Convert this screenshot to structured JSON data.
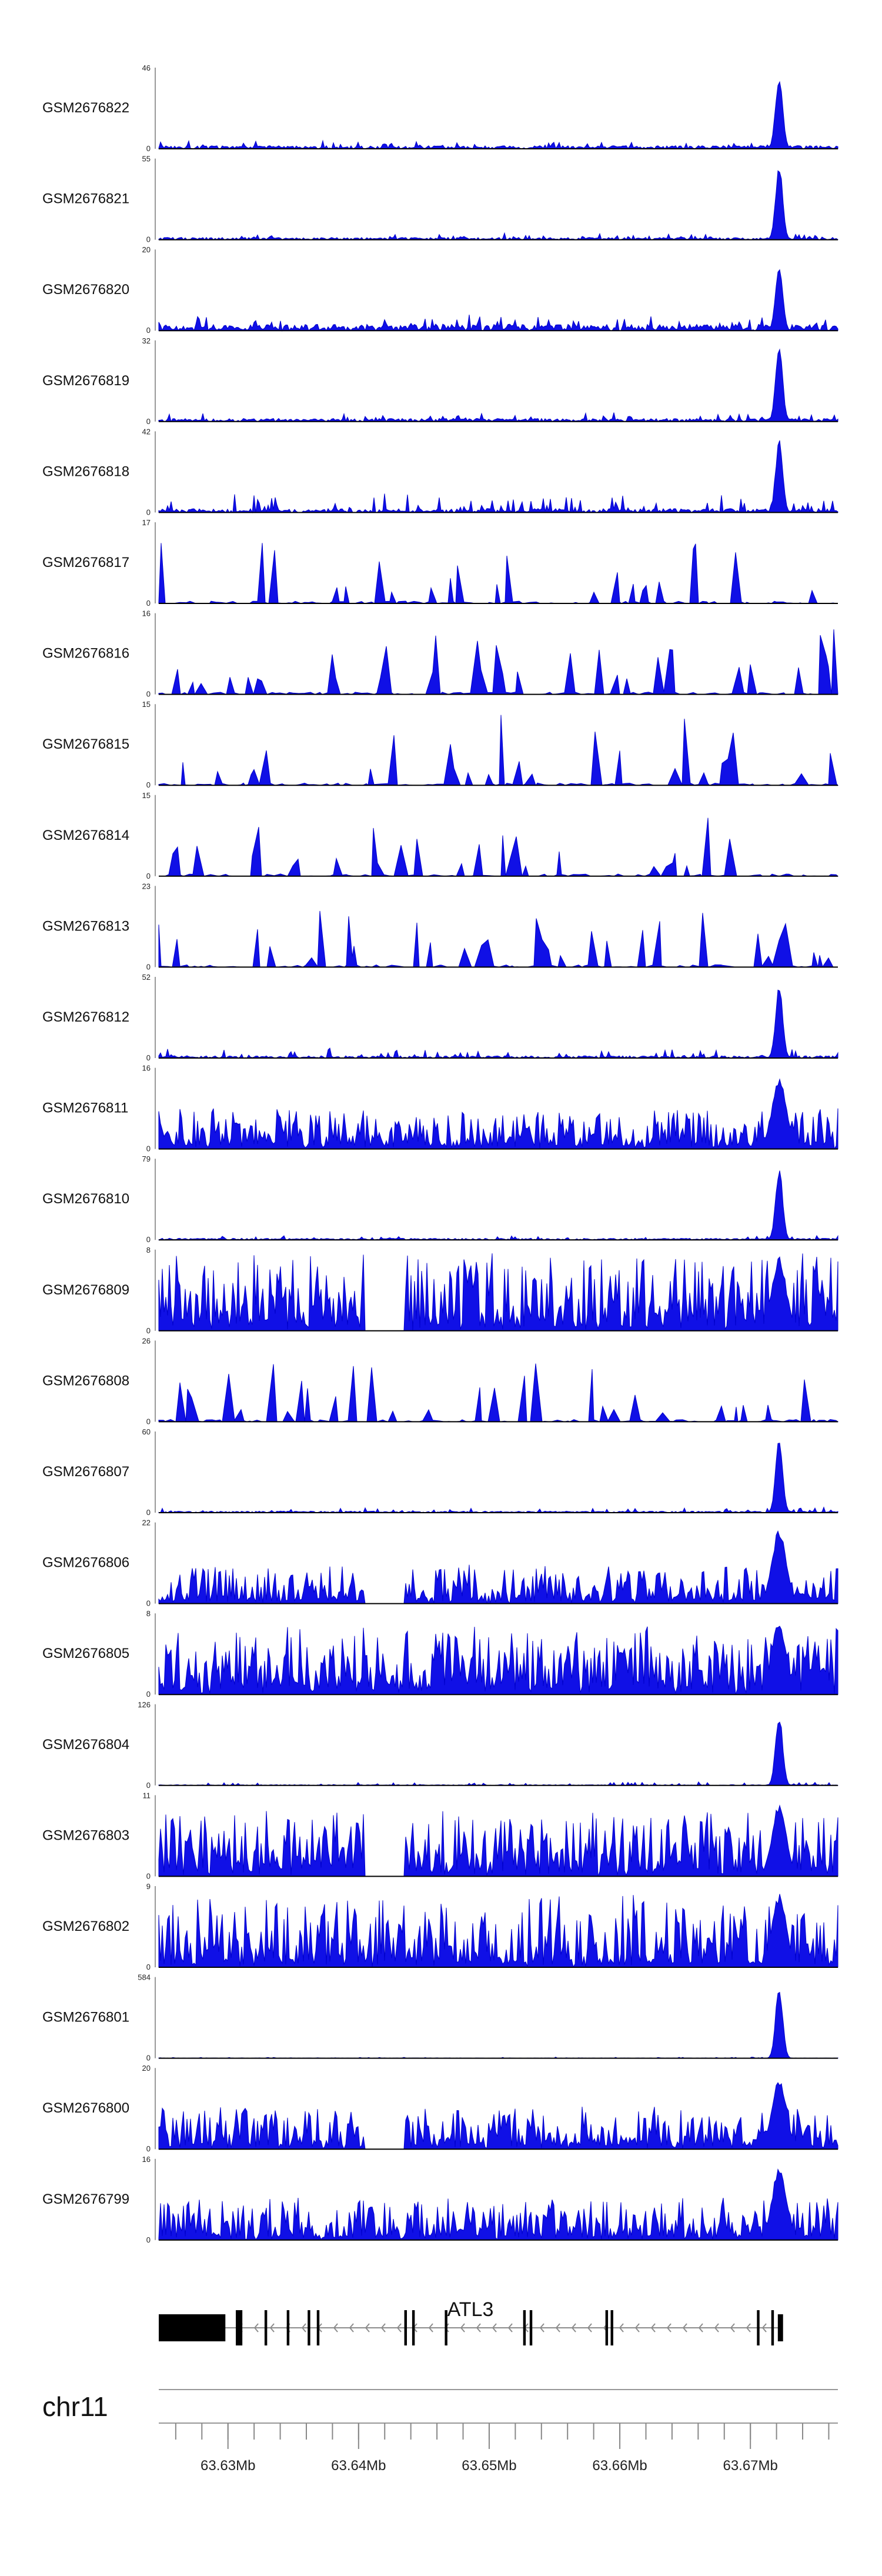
{
  "chart_data": {
    "type": "area",
    "x_range": [
      63.6247,
      63.6767
    ],
    "tracks": [
      {
        "name": "GSM2676822",
        "ymax": "46",
        "ymin": "0",
        "profile": "peak",
        "baseline": 0.04,
        "noise": 0.07,
        "peak": 1.0,
        "seed": 11
      },
      {
        "name": "GSM2676821",
        "ymax": "55",
        "ymin": "0",
        "profile": "peak",
        "baseline": 0.03,
        "noise": 0.06,
        "peak": 1.0,
        "seed": 12
      },
      {
        "name": "GSM2676820",
        "ymax": "20",
        "ymin": "0",
        "profile": "peak",
        "baseline": 0.08,
        "noise": 0.14,
        "peak": 0.9,
        "seed": 13
      },
      {
        "name": "GSM2676819",
        "ymax": "32",
        "ymin": "0",
        "profile": "peak",
        "baseline": 0.04,
        "noise": 0.08,
        "peak": 0.95,
        "seed": 14
      },
      {
        "name": "GSM2676818",
        "ymax": "42",
        "ymin": "0",
        "profile": "peak",
        "baseline": 0.05,
        "noise": 0.2,
        "peak": 0.95,
        "seed": 15
      },
      {
        "name": "GSM2676817",
        "ymax": "17",
        "ymin": "0",
        "profile": "sparse",
        "baseline": 0.0,
        "noise": 0.85,
        "peak": 0.0,
        "seed": 16
      },
      {
        "name": "GSM2676816",
        "ymax": "16",
        "ymin": "0",
        "profile": "sparse",
        "baseline": 0.0,
        "noise": 0.85,
        "peak": 0.0,
        "seed": 17
      },
      {
        "name": "GSM2676815",
        "ymax": "15",
        "ymin": "0",
        "profile": "sparse",
        "baseline": 0.0,
        "noise": 0.9,
        "peak": 0.0,
        "seed": 18
      },
      {
        "name": "GSM2676814",
        "ymax": "15",
        "ymin": "0",
        "profile": "sparse",
        "baseline": 0.0,
        "noise": 0.8,
        "peak": 0.0,
        "seed": 19
      },
      {
        "name": "GSM2676813",
        "ymax": "23",
        "ymin": "0",
        "profile": "sparse",
        "baseline": 0.0,
        "noise": 0.75,
        "peak": 0.0,
        "seed": 20
      },
      {
        "name": "GSM2676812",
        "ymax": "52",
        "ymin": "0",
        "profile": "peak",
        "baseline": 0.03,
        "noise": 0.1,
        "peak": 0.95,
        "seed": 21
      },
      {
        "name": "GSM2676811",
        "ymax": "16",
        "ymin": "0",
        "profile": "dense",
        "baseline": 0.05,
        "noise": 0.5,
        "peak": 0.95,
        "seed": 22
      },
      {
        "name": "GSM2676810",
        "ymax": "79",
        "ymin": "0",
        "profile": "peak",
        "baseline": 0.02,
        "noise": 0.04,
        "peak": 0.95,
        "seed": 23
      },
      {
        "name": "GSM2676809",
        "ymax": "8",
        "ymin": "0",
        "profile": "dense",
        "baseline": 0.1,
        "noise": 0.9,
        "peak": 0.95,
        "seed": 24
      },
      {
        "name": "GSM2676808",
        "ymax": "26",
        "ymin": "0",
        "profile": "sparse",
        "baseline": 0.0,
        "noise": 0.75,
        "peak": 0.0,
        "seed": 25
      },
      {
        "name": "GSM2676807",
        "ymax": "60",
        "ymin": "0",
        "profile": "peak",
        "baseline": 0.02,
        "noise": 0.05,
        "peak": 0.95,
        "seed": 26
      },
      {
        "name": "GSM2676806",
        "ymax": "22",
        "ymin": "0",
        "profile": "dense",
        "baseline": 0.05,
        "noise": 0.45,
        "peak": 0.95,
        "seed": 27
      },
      {
        "name": "GSM2676805",
        "ymax": "8",
        "ymin": "0",
        "profile": "dense",
        "baseline": 0.1,
        "noise": 0.8,
        "peak": 0.95,
        "seed": 28
      },
      {
        "name": "GSM2676804",
        "ymax": "126",
        "ymin": "0",
        "profile": "peak",
        "baseline": 0.01,
        "noise": 0.04,
        "peak": 0.95,
        "seed": 29
      },
      {
        "name": "GSM2676803",
        "ymax": "11",
        "ymin": "0",
        "profile": "dense",
        "baseline": 0.1,
        "noise": 0.75,
        "peak": 0.95,
        "seed": 30
      },
      {
        "name": "GSM2676802",
        "ymax": "9",
        "ymin": "0",
        "profile": "dense",
        "baseline": 0.08,
        "noise": 0.85,
        "peak": 0.95,
        "seed": 31
      },
      {
        "name": "GSM2676801",
        "ymax": "584",
        "ymin": "0",
        "profile": "peak",
        "baseline": 0.005,
        "noise": 0.01,
        "peak": 0.95,
        "seed": 32
      },
      {
        "name": "GSM2676800",
        "ymax": "20",
        "ymin": "0",
        "profile": "dense",
        "baseline": 0.05,
        "noise": 0.5,
        "peak": 0.95,
        "seed": 33
      },
      {
        "name": "GSM2676799",
        "ymax": "16",
        "ymin": "0",
        "profile": "dense",
        "baseline": 0.05,
        "noise": 0.5,
        "peak": 0.95,
        "seed": 34
      }
    ],
    "peak_center": 63.6722,
    "gene": {
      "name": "ATL3",
      "strand": "-",
      "intron_start": 63.6297,
      "intron_end": 63.6723,
      "exons": [
        {
          "start": 63.6247,
          "end": 63.6298
        },
        {
          "start": 63.6306,
          "end": 63.6311
        },
        {
          "start": 63.6328,
          "end": 63.633
        },
        {
          "start": 63.6345,
          "end": 63.6347
        },
        {
          "start": 63.6361,
          "end": 63.6363
        },
        {
          "start": 63.6368,
          "end": 63.637
        },
        {
          "start": 63.6435,
          "end": 63.6437
        },
        {
          "start": 63.6441,
          "end": 63.6443
        },
        {
          "start": 63.6466,
          "end": 63.6468
        },
        {
          "start": 63.6526,
          "end": 63.6528
        },
        {
          "start": 63.6531,
          "end": 63.6533
        },
        {
          "start": 63.6589,
          "end": 63.6591
        },
        {
          "start": 63.6593,
          "end": 63.6595
        },
        {
          "start": 63.6705,
          "end": 63.6707
        },
        {
          "start": 63.6716,
          "end": 63.6718
        },
        {
          "start": 63.6721,
          "end": 63.6725
        }
      ]
    },
    "chromosome": "chr11",
    "xticks": [
      {
        "value": 63.63,
        "label": "63.63Mb"
      },
      {
        "value": 63.64,
        "label": "63.64Mb"
      },
      {
        "value": 63.65,
        "label": "63.65Mb"
      },
      {
        "value": 63.66,
        "label": "63.66Mb"
      },
      {
        "value": 63.67,
        "label": "63.67Mb"
      }
    ],
    "minor_tick_step": 0.002,
    "fill_color": "#1010e6"
  }
}
